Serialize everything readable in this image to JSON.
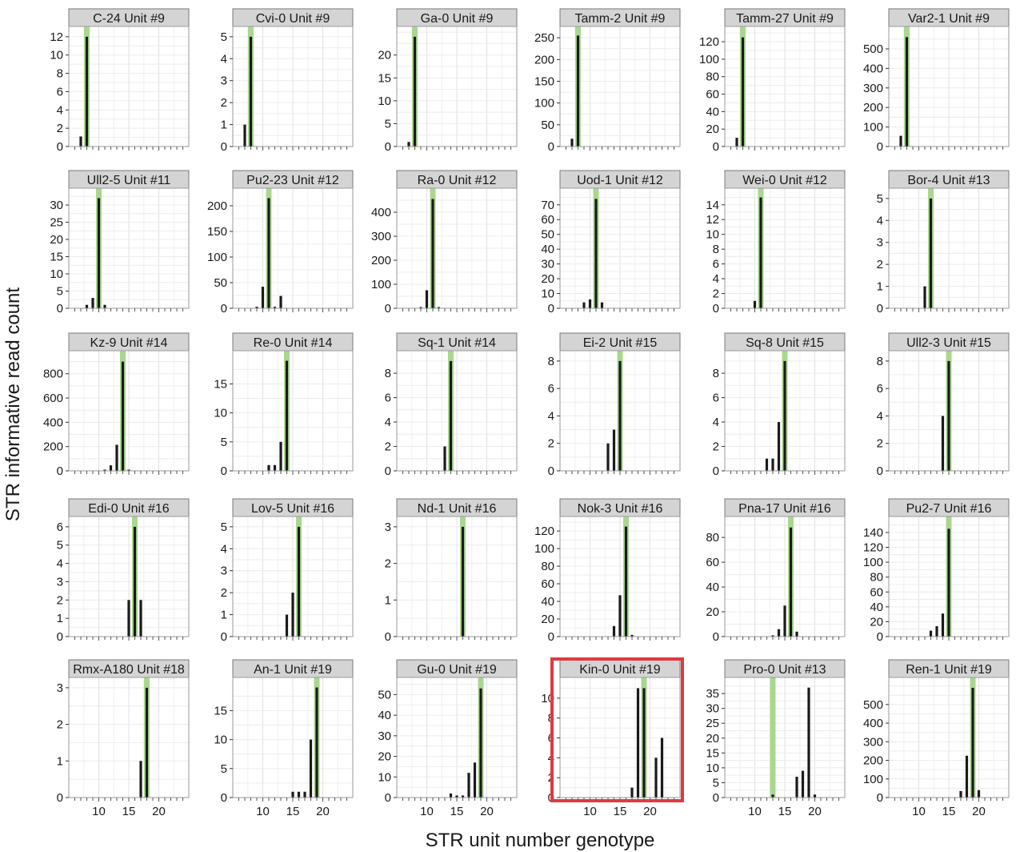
{
  "figure": {
    "xlabel": "STR unit number genotype",
    "ylabel": "STR informative read count",
    "xlim": [
      5,
      25
    ],
    "x_ticks": [
      10,
      15,
      20
    ],
    "highlight_color": "#a8d88e",
    "bar_color": "#1a1a1a",
    "emphasis_color": "#e03a3e",
    "grid": true
  },
  "chart_data": [
    {
      "type": "bar",
      "title": "C-24 Unit #9",
      "genotype": 8,
      "yticks": [
        0,
        2,
        4,
        6,
        8,
        10,
        12
      ],
      "ylim": [
        0,
        12.6
      ],
      "x": [
        7,
        8
      ],
      "values": [
        1.1,
        12
      ]
    },
    {
      "type": "bar",
      "title": "Cvi-0 Unit #9",
      "genotype": 8,
      "yticks": [
        0,
        1,
        2,
        3,
        4,
        5
      ],
      "ylim": [
        0,
        5.25
      ],
      "x": [
        7,
        8
      ],
      "values": [
        1,
        5
      ]
    },
    {
      "type": "bar",
      "title": "Ga-0 Unit #9",
      "genotype": 8,
      "yticks": [
        0,
        5,
        10,
        15,
        20
      ],
      "ylim": [
        0,
        25.2
      ],
      "x": [
        7,
        8
      ],
      "values": [
        1,
        24
      ]
    },
    {
      "type": "bar",
      "title": "Tamm-2 Unit #9",
      "genotype": 8,
      "yticks": [
        0,
        50,
        100,
        150,
        200,
        250
      ],
      "ylim": [
        0,
        265
      ],
      "x": [
        7,
        8
      ],
      "values": [
        18,
        255
      ]
    },
    {
      "type": "bar",
      "title": "Tamm-27 Unit #9",
      "genotype": 8,
      "yticks": [
        0,
        20,
        40,
        60,
        80,
        100,
        120
      ],
      "ylim": [
        0,
        132
      ],
      "x": [
        7,
        8
      ],
      "values": [
        10,
        125
      ]
    },
    {
      "type": "bar",
      "title": "Var2-1 Unit #9",
      "genotype": 8,
      "yticks": [
        0,
        100,
        200,
        300,
        400,
        500
      ],
      "ylim": [
        0,
        590
      ],
      "x": [
        7,
        8
      ],
      "values": [
        55,
        560
      ]
    },
    {
      "type": "bar",
      "title": "Ull2-5 Unit #11",
      "genotype": 10,
      "yticks": [
        0,
        5,
        10,
        15,
        20,
        25,
        30
      ],
      "ylim": [
        0,
        33.5
      ],
      "x": [
        8,
        9,
        10,
        11
      ],
      "values": [
        1,
        3,
        32,
        1
      ]
    },
    {
      "type": "bar",
      "title": "Pu2-23 Unit #12",
      "genotype": 11,
      "yticks": [
        0,
        50,
        100,
        150,
        200
      ],
      "ylim": [
        0,
        225
      ],
      "x": [
        9,
        10,
        11,
        12,
        13
      ],
      "values": [
        3,
        42,
        215,
        3,
        24
      ]
    },
    {
      "type": "bar",
      "title": "Ra-0 Unit #12",
      "genotype": 11,
      "yticks": [
        0,
        100,
        200,
        300,
        400
      ],
      "ylim": [
        0,
        480
      ],
      "x": [
        9,
        10,
        11,
        12
      ],
      "values": [
        5,
        75,
        455,
        5
      ]
    },
    {
      "type": "bar",
      "title": "Uod-1 Unit #12",
      "genotype": 11,
      "yticks": [
        0,
        10,
        20,
        30,
        40,
        50,
        60,
        70
      ],
      "ylim": [
        0,
        78
      ],
      "x": [
        8,
        9,
        10,
        11,
        12
      ],
      "values": [
        0,
        4,
        6,
        74,
        4
      ]
    },
    {
      "type": "bar",
      "title": "Wei-0 Unit #12",
      "genotype": 11,
      "yticks": [
        0,
        2,
        4,
        6,
        8,
        10,
        12,
        14
      ],
      "ylim": [
        0,
        15.6
      ],
      "x": [
        10,
        11
      ],
      "values": [
        1,
        15
      ]
    },
    {
      "type": "bar",
      "title": "Bor-4 Unit #13",
      "genotype": 12,
      "yticks": [
        0,
        1,
        2,
        3,
        4,
        5
      ],
      "ylim": [
        0,
        5.25
      ],
      "x": [
        11,
        12
      ],
      "values": [
        1,
        5
      ]
    },
    {
      "type": "bar",
      "title": "Kz-9 Unit #14",
      "genotype": 14,
      "yticks": [
        0,
        200,
        400,
        600,
        800
      ],
      "ylim": [
        0,
        950
      ],
      "x": [
        11,
        12,
        13,
        14,
        15
      ],
      "values": [
        10,
        45,
        215,
        900,
        10
      ]
    },
    {
      "type": "bar",
      "title": "Re-0 Unit #14",
      "genotype": 14,
      "yticks": [
        0,
        5,
        10,
        15
      ],
      "ylim": [
        0,
        19.9
      ],
      "x": [
        11,
        12,
        13,
        14
      ],
      "values": [
        1,
        1,
        5,
        19
      ]
    },
    {
      "type": "bar",
      "title": "Sq-1 Unit #14",
      "genotype": 14,
      "yticks": [
        0,
        2,
        4,
        6,
        8
      ],
      "ylim": [
        0,
        9.45
      ],
      "x": [
        13,
        14
      ],
      "values": [
        2,
        9
      ]
    },
    {
      "type": "bar",
      "title": "Ei-2 Unit #15",
      "genotype": 15,
      "yticks": [
        0,
        2,
        4,
        6,
        8
      ],
      "ylim": [
        0,
        8.4
      ],
      "x": [
        13,
        14,
        15
      ],
      "values": [
        2,
        3,
        8
      ]
    },
    {
      "type": "bar",
      "title": "Sq-8 Unit #15",
      "genotype": 15,
      "yticks": [
        0,
        2,
        4,
        6,
        8
      ],
      "ylim": [
        0,
        9.45
      ],
      "x": [
        12,
        13,
        14,
        15
      ],
      "values": [
        1,
        1,
        4,
        9
      ]
    },
    {
      "type": "bar",
      "title": "Ull2-3 Unit #15",
      "genotype": 15,
      "yticks": [
        0,
        2,
        4,
        6,
        8
      ],
      "ylim": [
        0,
        8.4
      ],
      "x": [
        14,
        15
      ],
      "values": [
        4,
        8
      ]
    },
    {
      "type": "bar",
      "title": "Edi-0 Unit #16",
      "genotype": 16,
      "yticks": [
        0,
        1,
        2,
        3,
        4,
        5,
        6
      ],
      "ylim": [
        0,
        6.3
      ],
      "x": [
        15,
        16,
        17
      ],
      "values": [
        2,
        6,
        2
      ]
    },
    {
      "type": "bar",
      "title": "Lov-5 Unit #16",
      "genotype": 16,
      "yticks": [
        0,
        1,
        2,
        3,
        4,
        5
      ],
      "ylim": [
        0,
        5.25
      ],
      "x": [
        14,
        15,
        16
      ],
      "values": [
        1,
        2,
        5
      ]
    },
    {
      "type": "bar",
      "title": "Nd-1 Unit #16",
      "genotype": 16,
      "yticks": [
        0,
        1,
        2,
        3
      ],
      "ylim": [
        0,
        3.15
      ],
      "x": [
        16
      ],
      "values": [
        3
      ]
    },
    {
      "type": "bar",
      "title": "Nok-3 Unit #16",
      "genotype": 16,
      "yticks": [
        0,
        20,
        40,
        60,
        80,
        100,
        120
      ],
      "ylim": [
        0,
        131
      ],
      "x": [
        14,
        15,
        16,
        17
      ],
      "values": [
        12,
        47,
        125,
        2
      ]
    },
    {
      "type": "bar",
      "title": "Pna-17 Unit #16",
      "genotype": 16,
      "yticks": [
        0,
        20,
        40,
        60,
        80
      ],
      "ylim": [
        0,
        93
      ],
      "x": [
        13,
        14,
        15,
        16,
        17
      ],
      "values": [
        1,
        6,
        25,
        88,
        4
      ]
    },
    {
      "type": "bar",
      "title": "Pu2-7 Unit #16",
      "genotype": 15,
      "yticks": [
        0,
        20,
        40,
        60,
        80,
        100,
        120,
        140
      ],
      "ylim": [
        0,
        155
      ],
      "x": [
        12,
        13,
        14,
        15
      ],
      "values": [
        8,
        14,
        31,
        145
      ]
    },
    {
      "type": "bar",
      "title": "Rmx-A180 Unit #18",
      "genotype": 18,
      "yticks": [
        0,
        1,
        2,
        3
      ],
      "ylim": [
        0,
        3.15
      ],
      "x": [
        17,
        18
      ],
      "values": [
        1,
        3
      ]
    },
    {
      "type": "bar",
      "title": "An-1 Unit #19",
      "genotype": 19,
      "yticks": [
        0,
        5,
        10,
        15
      ],
      "ylim": [
        0,
        19.9
      ],
      "x": [
        15,
        16,
        17,
        18,
        19
      ],
      "values": [
        1,
        1,
        1,
        10,
        19
      ]
    },
    {
      "type": "bar",
      "title": "Gu-0 Unit #19",
      "genotype": 19,
      "yticks": [
        0,
        10,
        20,
        30,
        40,
        50
      ],
      "ylim": [
        0,
        56
      ],
      "x": [
        14,
        15,
        16,
        17,
        18,
        19
      ],
      "values": [
        2,
        1,
        1,
        12,
        17,
        53
      ]
    },
    {
      "type": "bar",
      "title": "Kin-0 Unit #19",
      "genotype": 19,
      "yticks": [
        0,
        2,
        4,
        6,
        8,
        10
      ],
      "ylim": [
        0,
        11.6
      ],
      "x": [
        17,
        18,
        19,
        20,
        21,
        22
      ],
      "values": [
        1,
        11,
        11,
        0,
        4,
        6
      ],
      "emphasized": true
    },
    {
      "type": "bar",
      "title": "Pro-0 Unit #13",
      "genotype": 13,
      "yticks": [
        0,
        5,
        10,
        15,
        20,
        25,
        30,
        35
      ],
      "ylim": [
        0,
        38.8
      ],
      "x": [
        13,
        17,
        18,
        19,
        20
      ],
      "values": [
        1,
        7,
        9,
        37,
        1
      ]
    },
    {
      "type": "bar",
      "title": "Ren-1 Unit #19",
      "genotype": 19,
      "yticks": [
        0,
        100,
        200,
        300,
        400,
        500
      ],
      "ylim": [
        0,
        620
      ],
      "x": [
        17,
        18,
        19,
        20
      ],
      "values": [
        35,
        225,
        590,
        40
      ]
    }
  ]
}
